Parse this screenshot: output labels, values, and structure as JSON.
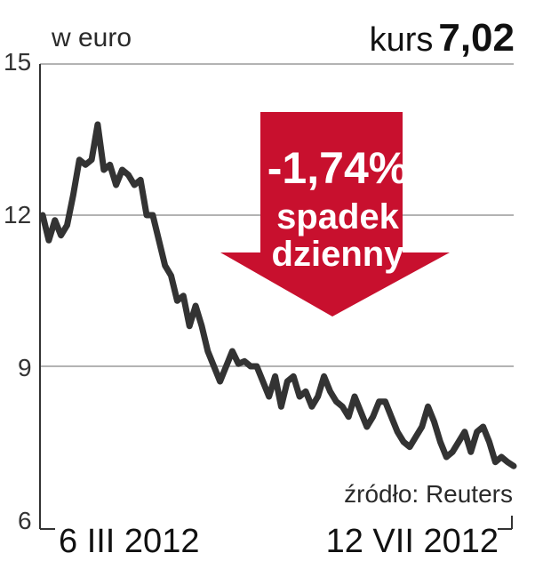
{
  "header": {
    "unit_label": "w euro",
    "kurs_label": "kurs",
    "kurs_value": "7,02"
  },
  "badge": {
    "change": "-1,74%",
    "line1": "spadek",
    "line2": "dzienny",
    "color": "#c8102e"
  },
  "source": "źródło: Reuters",
  "colors": {
    "line": "#333333",
    "grid": "#9a9a9a",
    "axis": "#333333"
  },
  "chart_data": {
    "type": "line",
    "title": "",
    "xlabel": "",
    "ylabel": "w euro",
    "ylim": [
      6,
      15
    ],
    "yticks": [
      "15",
      "12",
      "9",
      "6"
    ],
    "x_tick_labels": [
      "6 III 2012",
      "12 VII 2012"
    ],
    "grid": true,
    "series": [
      {
        "values": [
          12.0,
          11.5,
          11.9,
          11.6,
          11.8,
          12.4,
          13.1,
          13.0,
          13.1,
          13.8,
          12.9,
          13.0,
          12.6,
          12.9,
          12.8,
          12.6,
          12.7,
          12.0,
          12.0,
          11.5,
          11.0,
          10.8,
          10.3,
          10.4,
          9.8,
          10.2,
          9.8,
          9.3,
          9.0,
          8.7,
          9.0,
          9.3,
          9.05,
          9.1,
          9.0,
          9.0,
          8.7,
          8.4,
          8.8,
          8.2,
          8.7,
          8.8,
          8.4,
          8.5,
          8.2,
          8.4,
          8.8,
          8.5,
          8.3,
          8.2,
          8.0,
          8.4,
          8.1,
          7.8,
          8.0,
          8.3,
          8.3,
          8.0,
          7.7,
          7.5,
          7.4,
          7.6,
          7.8,
          8.2,
          7.9,
          7.5,
          7.2,
          7.3,
          7.5,
          7.7,
          7.3,
          7.7,
          7.8,
          7.5,
          7.1,
          7.2,
          7.1,
          7.02
        ]
      }
    ]
  }
}
